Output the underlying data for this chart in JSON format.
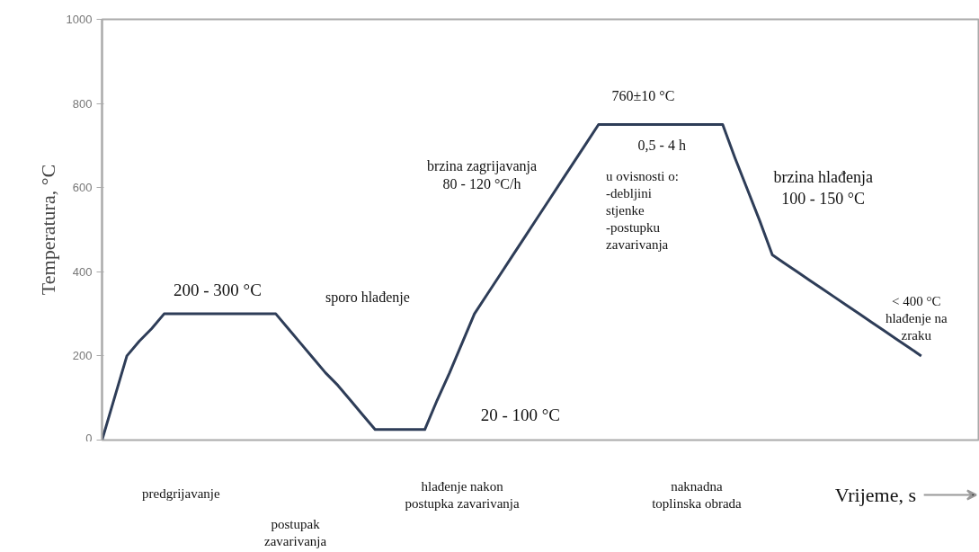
{
  "chart_data": {
    "type": "line",
    "xlabel": "Vrijeme, s",
    "ylabel": "Temperatura, °C",
    "categories": [
      null,
      null,
      null,
      null,
      null,
      null,
      null,
      null,
      null,
      null,
      null,
      null,
      null,
      null,
      null,
      null,
      null,
      null,
      null,
      null,
      null,
      null,
      null,
      null,
      null,
      null,
      null,
      null,
      null,
      null,
      null,
      null,
      null,
      null,
      null,
      null,
      null,
      null,
      null,
      null,
      null,
      null,
      null,
      null,
      null,
      null,
      null,
      null,
      null,
      null,
      null,
      null,
      null,
      null,
      null,
      null,
      null,
      null,
      null,
      null,
      null,
      null,
      null,
      null,
      null,
      null,
      null
    ],
    "series": [
      {
        "color": "#2e3d58",
        "values": [
          0,
          100,
          200,
          235,
          265,
          300,
          300,
          300,
          300,
          300,
          300,
          300,
          300,
          300,
          300,
          265,
          230,
          195,
          160,
          130,
          95,
          60,
          25,
          25,
          25,
          25,
          25,
          95,
          160,
          230,
          300,
          345,
          390,
          435,
          480,
          525,
          570,
          615,
          660,
          705,
          750,
          750,
          750,
          750,
          750,
          750,
          750,
          750,
          750,
          750,
          750,
          670,
          595,
          520,
          440,
          420,
          400,
          380,
          360,
          340,
          320,
          300,
          280,
          260,
          240,
          220,
          200
        ]
      }
    ],
    "ylim": [
      0,
      1000
    ],
    "yticks": [
      0,
      200,
      400,
      600,
      800,
      1000
    ],
    "tick_labels": "y",
    "grid": false,
    "marker": "none",
    "line_style": "solid",
    "annotations": [
      "200 - 300 °C",
      "sporo hlađenje",
      "20 - 100 °C",
      "brzina zagrijavanja\n80 - 120 °C/h",
      "760±10 °C",
      "0,5 - 4 h",
      "u ovisnosti o:\n-debljini\nstjenke\n-postupku\nzavarivanja",
      "brzina hlađenja\n100 - 150 °C",
      "< 400 °C\nhlađenje na\nzraku",
      "predgrijavanje",
      "postupak\nzavarivanja",
      "hlađenje nakon\npostupka zavarivanja",
      "naknadna\ntoplinska obrada"
    ]
  }
}
